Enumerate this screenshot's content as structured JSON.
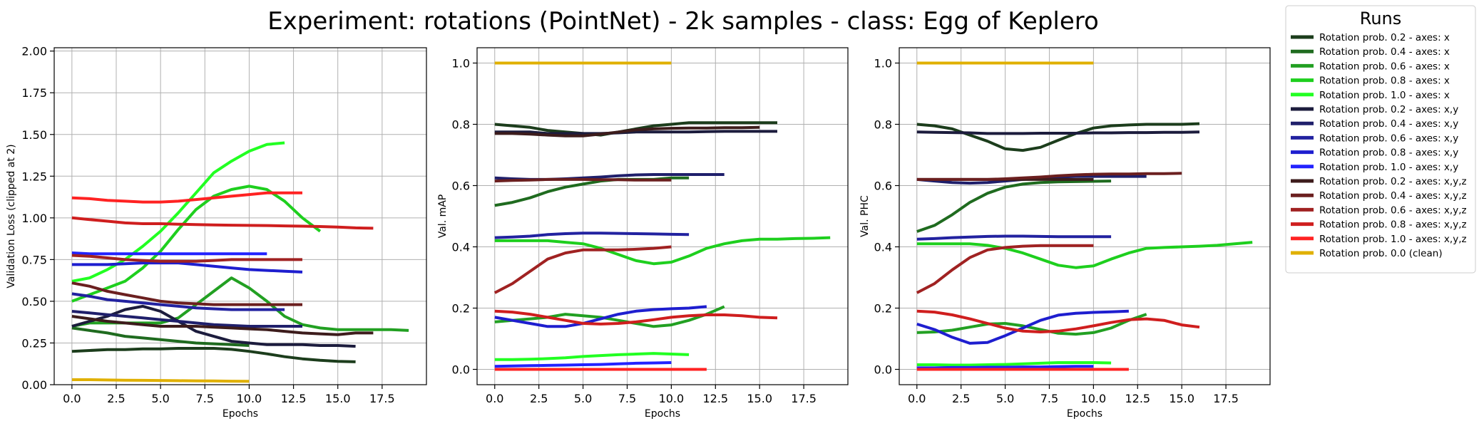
{
  "figure": {
    "title": "Experiment: rotations (PointNet) - 2k samples - class: Egg of Keplero"
  },
  "legend": {
    "title": "Runs",
    "placement": "outside-right"
  },
  "series_meta": [
    {
      "name": "Rotation prob. 0.2 - axes: x",
      "color": "#1c3d1c"
    },
    {
      "name": "Rotation prob. 0.4 - axes: x",
      "color": "#1f6b1f"
    },
    {
      "name": "Rotation prob. 0.6 - axes: x",
      "color": "#22a022"
    },
    {
      "name": "Rotation prob. 0.8 - axes: x",
      "color": "#1ecf1e"
    },
    {
      "name": "Rotation prob. 1.0 - axes: x",
      "color": "#22ff22"
    },
    {
      "name": "Rotation prob. 0.2 - axes: x,y",
      "color": "#1c1c3d"
    },
    {
      "name": "Rotation prob. 0.4 - axes: x,y",
      "color": "#1f1f6b"
    },
    {
      "name": "Rotation prob. 0.6 - axes: x,y",
      "color": "#2222a0"
    },
    {
      "name": "Rotation prob. 0.8 - axes: x,y",
      "color": "#1e1ecf"
    },
    {
      "name": "Rotation prob. 1.0 - axes: x,y",
      "color": "#2222ff"
    },
    {
      "name": "Rotation prob. 0.2 - axes: x,y,z",
      "color": "#3d1c1c"
    },
    {
      "name": "Rotation prob. 0.4 - axes: x,y,z",
      "color": "#6b1f1f"
    },
    {
      "name": "Rotation prob. 0.6 - axes: x,y,z",
      "color": "#a02222"
    },
    {
      "name": "Rotation prob. 0.8 - axes: x,y,z",
      "color": "#cf1e1e"
    },
    {
      "name": "Rotation prob. 1.0 - axes: x,y,z",
      "color": "#ff2222"
    },
    {
      "name": "Rotation prob. 0.0 (clean)",
      "color": "#e0b000"
    }
  ],
  "chart_data": [
    {
      "type": "line",
      "title": "",
      "xlabel": "Epochs",
      "ylabel": "Validation Loss (clipped at 2)",
      "xlim": [
        -1,
        20
      ],
      "ylim": [
        0,
        2.02
      ],
      "xticks": [
        "0.0",
        "2.5",
        "5.0",
        "7.5",
        "10.0",
        "12.5",
        "15.0",
        "17.5"
      ],
      "xtick_values": [
        0,
        2.5,
        5,
        7.5,
        10,
        12.5,
        15,
        17.5
      ],
      "yticks": [
        "0.00",
        "0.25",
        "0.50",
        "0.75",
        "1.00",
        "1.25",
        "1.50",
        "1.75",
        "2.00"
      ],
      "ytick_values": [
        0,
        0.25,
        0.5,
        0.75,
        1.0,
        1.25,
        1.5,
        1.75,
        2.0
      ],
      "grid": true,
      "series": [
        {
          "values": [
            0.2,
            0.205,
            0.21,
            0.21,
            0.215,
            0.215,
            0.218,
            0.218,
            0.218,
            0.212,
            0.2,
            0.185,
            0.168,
            0.155,
            0.146,
            0.14,
            0.137
          ]
        },
        {
          "values": [
            0.34,
            0.325,
            0.31,
            0.29,
            0.28,
            0.27,
            0.26,
            0.25,
            0.245,
            0.24,
            0.235
          ]
        },
        {
          "values": [
            0.35,
            0.37,
            0.37,
            0.37,
            0.37,
            0.37,
            0.4,
            0.48,
            0.56,
            0.64,
            0.58,
            0.5,
            0.41,
            0.36,
            0.34,
            0.33,
            0.33,
            0.33,
            0.33,
            0.325
          ]
        },
        {
          "values": [
            0.5,
            0.54,
            0.58,
            0.62,
            0.7,
            0.8,
            0.93,
            1.05,
            1.13,
            1.17,
            1.19,
            1.17,
            1.1,
            1.0,
            0.92
          ]
        },
        {
          "values": [
            0.62,
            0.64,
            0.69,
            0.75,
            0.83,
            0.92,
            1.03,
            1.15,
            1.27,
            1.34,
            1.4,
            1.44,
            1.45
          ]
        },
        {
          "values": [
            0.35,
            0.38,
            0.41,
            0.45,
            0.47,
            0.44,
            0.38,
            0.32,
            0.29,
            0.26,
            0.25,
            0.24,
            0.24,
            0.24,
            0.235,
            0.235,
            0.23
          ]
        },
        {
          "values": [
            0.44,
            0.43,
            0.42,
            0.41,
            0.4,
            0.39,
            0.38,
            0.37,
            0.36,
            0.355,
            0.35,
            0.35,
            0.35,
            0.35
          ]
        },
        {
          "values": [
            0.545,
            0.53,
            0.51,
            0.5,
            0.49,
            0.48,
            0.47,
            0.46,
            0.455,
            0.45,
            0.45,
            0.45,
            0.45
          ]
        },
        {
          "values": [
            0.72,
            0.72,
            0.72,
            0.725,
            0.73,
            0.73,
            0.73,
            0.72,
            0.71,
            0.7,
            0.69,
            0.685,
            0.68,
            0.675
          ]
        },
        {
          "values": [
            0.79,
            0.785,
            0.785,
            0.785,
            0.785,
            0.785,
            0.785,
            0.785,
            0.785,
            0.785,
            0.785,
            0.785
          ]
        },
        {
          "values": [
            0.41,
            0.395,
            0.38,
            0.37,
            0.36,
            0.35,
            0.35,
            0.35,
            0.345,
            0.34,
            0.335,
            0.33,
            0.32,
            0.31,
            0.305,
            0.3,
            0.31,
            0.31
          ]
        },
        {
          "values": [
            0.61,
            0.59,
            0.56,
            0.54,
            0.52,
            0.5,
            0.49,
            0.485,
            0.48,
            0.48,
            0.48,
            0.48,
            0.48,
            0.48
          ]
        },
        {
          "values": [
            0.775,
            0.77,
            0.76,
            0.75,
            0.745,
            0.74,
            0.74,
            0.74,
            0.745,
            0.75,
            0.75,
            0.75,
            0.75,
            0.75
          ]
        },
        {
          "values": [
            1.0,
            0.99,
            0.98,
            0.97,
            0.965,
            0.965,
            0.962,
            0.96,
            0.958,
            0.956,
            0.955,
            0.954,
            0.952,
            0.95,
            0.948,
            0.945,
            0.94,
            0.938
          ]
        },
        {
          "values": [
            1.12,
            1.115,
            1.105,
            1.1,
            1.095,
            1.095,
            1.1,
            1.11,
            1.12,
            1.13,
            1.14,
            1.15,
            1.15,
            1.15
          ]
        },
        {
          "values": [
            0.03,
            0.03,
            0.028,
            0.027,
            0.026,
            0.025,
            0.024,
            0.023,
            0.022,
            0.021,
            0.02
          ]
        }
      ]
    },
    {
      "type": "line",
      "title": "",
      "xlabel": "Epochs",
      "ylabel": "Val. mAP",
      "xlim": [
        -1,
        20
      ],
      "ylim": [
        -0.05,
        1.05
      ],
      "xticks": [
        "0.0",
        "2.5",
        "5.0",
        "7.5",
        "10.0",
        "12.5",
        "15.0",
        "17.5"
      ],
      "xtick_values": [
        0,
        2.5,
        5,
        7.5,
        10,
        12.5,
        15,
        17.5
      ],
      "yticks": [
        "0.0",
        "0.2",
        "0.4",
        "0.6",
        "0.8",
        "1.0"
      ],
      "ytick_values": [
        0,
        0.2,
        0.4,
        0.6,
        0.8,
        1.0
      ],
      "grid": true,
      "series": [
        {
          "values": [
            0.8,
            0.795,
            0.79,
            0.78,
            0.775,
            0.77,
            0.765,
            0.775,
            0.785,
            0.795,
            0.8,
            0.805,
            0.805,
            0.805,
            0.805,
            0.805,
            0.805
          ]
        },
        {
          "values": [
            0.535,
            0.545,
            0.56,
            0.58,
            0.595,
            0.605,
            0.615,
            0.62,
            0.62,
            0.62,
            0.625,
            0.625
          ]
        },
        {
          "values": [
            0.155,
            0.16,
            0.165,
            0.17,
            0.18,
            0.175,
            0.17,
            0.16,
            0.15,
            0.14,
            0.145,
            0.16,
            0.18,
            0.205
          ]
        },
        {
          "values": [
            0.42,
            0.42,
            0.42,
            0.42,
            0.415,
            0.41,
            0.395,
            0.375,
            0.355,
            0.345,
            0.35,
            0.37,
            0.395,
            0.41,
            0.42,
            0.425,
            0.425,
            0.427,
            0.428,
            0.43
          ]
        },
        {
          "values": [
            0.032,
            0.032,
            0.033,
            0.035,
            0.038,
            0.042,
            0.045,
            0.048,
            0.05,
            0.052,
            0.05,
            0.048
          ]
        },
        {
          "values": [
            0.775,
            0.775,
            0.775,
            0.77,
            0.77,
            0.77,
            0.77,
            0.772,
            0.775,
            0.775,
            0.775,
            0.775,
            0.776,
            0.777,
            0.777,
            0.777,
            0.777
          ]
        },
        {
          "values": [
            0.625,
            0.622,
            0.62,
            0.62,
            0.622,
            0.625,
            0.628,
            0.632,
            0.635,
            0.636,
            0.636,
            0.636,
            0.636,
            0.636
          ]
        },
        {
          "values": [
            0.43,
            0.432,
            0.435,
            0.44,
            0.443,
            0.445,
            0.445,
            0.444,
            0.443,
            0.442,
            0.441,
            0.44
          ]
        },
        {
          "values": [
            0.17,
            0.16,
            0.15,
            0.14,
            0.14,
            0.15,
            0.165,
            0.18,
            0.19,
            0.195,
            0.198,
            0.2,
            0.205
          ]
        },
        {
          "values": [
            0.01,
            0.011,
            0.012,
            0.013,
            0.014,
            0.015,
            0.016,
            0.018,
            0.02,
            0.021,
            0.022
          ]
        },
        {
          "values": [
            0.77,
            0.77,
            0.768,
            0.765,
            0.762,
            0.762,
            0.768,
            0.775,
            0.782,
            0.785,
            0.787,
            0.788,
            0.788,
            0.789,
            0.789,
            0.79
          ]
        },
        {
          "values": [
            0.615,
            0.617,
            0.618,
            0.62,
            0.62,
            0.62,
            0.619,
            0.619,
            0.618,
            0.618,
            0.618
          ]
        },
        {
          "values": [
            0.25,
            0.28,
            0.32,
            0.36,
            0.38,
            0.39,
            0.39,
            0.39,
            0.392,
            0.395,
            0.4
          ]
        },
        {
          "values": [
            0.19,
            0.187,
            0.18,
            0.17,
            0.16,
            0.15,
            0.148,
            0.15,
            0.155,
            0.162,
            0.17,
            0.175,
            0.178,
            0.178,
            0.175,
            0.17,
            0.168
          ]
        },
        {
          "values": [
            0.0,
            0.0,
            0.0,
            0.0,
            0.0,
            0.0,
            0.0,
            0.0,
            0.0,
            0.0,
            0.0,
            0.0,
            0.0
          ]
        },
        {
          "values": [
            1.0,
            1.0,
            1.0,
            1.0,
            1.0,
            1.0,
            1.0,
            1.0,
            1.0,
            1.0,
            1.0
          ]
        }
      ]
    },
    {
      "type": "line",
      "title": "",
      "xlabel": "Epochs",
      "ylabel": "Val. PHC",
      "xlim": [
        -1,
        20
      ],
      "ylim": [
        -0.05,
        1.05
      ],
      "xticks": [
        "0.0",
        "2.5",
        "5.0",
        "7.5",
        "10.0",
        "12.5",
        "15.0",
        "17.5"
      ],
      "xtick_values": [
        0,
        2.5,
        5,
        7.5,
        10,
        12.5,
        15,
        17.5
      ],
      "yticks": [
        "0.0",
        "0.2",
        "0.4",
        "0.6",
        "0.8",
        "1.0"
      ],
      "ytick_values": [
        0,
        0.2,
        0.4,
        0.6,
        0.8,
        1.0
      ],
      "grid": true,
      "series": [
        {
          "values": [
            0.8,
            0.795,
            0.785,
            0.765,
            0.745,
            0.72,
            0.715,
            0.725,
            0.748,
            0.77,
            0.788,
            0.795,
            0.798,
            0.8,
            0.8,
            0.8,
            0.802
          ]
        },
        {
          "values": [
            0.45,
            0.47,
            0.505,
            0.545,
            0.575,
            0.595,
            0.605,
            0.61,
            0.612,
            0.613,
            0.614,
            0.615
          ]
        },
        {
          "values": [
            0.12,
            0.122,
            0.128,
            0.138,
            0.148,
            0.15,
            0.142,
            0.13,
            0.118,
            0.115,
            0.12,
            0.135,
            0.16,
            0.18
          ]
        },
        {
          "values": [
            0.41,
            0.41,
            0.41,
            0.41,
            0.405,
            0.395,
            0.38,
            0.36,
            0.34,
            0.332,
            0.338,
            0.36,
            0.38,
            0.395,
            0.398,
            0.4,
            0.402,
            0.405,
            0.41,
            0.415
          ]
        },
        {
          "values": [
            0.015,
            0.015,
            0.014,
            0.014,
            0.015,
            0.016,
            0.018,
            0.02,
            0.022,
            0.022,
            0.022,
            0.021
          ]
        },
        {
          "values": [
            0.775,
            0.774,
            0.773,
            0.772,
            0.77,
            0.77,
            0.77,
            0.771,
            0.771,
            0.771,
            0.772,
            0.772,
            0.773,
            0.773,
            0.774,
            0.774,
            0.775
          ]
        },
        {
          "values": [
            0.62,
            0.615,
            0.61,
            0.608,
            0.61,
            0.615,
            0.62,
            0.625,
            0.628,
            0.63,
            0.63,
            0.63,
            0.63,
            0.63
          ]
        },
        {
          "values": [
            0.425,
            0.427,
            0.43,
            0.432,
            0.434,
            0.435,
            0.435,
            0.434,
            0.433,
            0.433,
            0.433,
            0.433
          ]
        },
        {
          "values": [
            0.148,
            0.13,
            0.105,
            0.085,
            0.088,
            0.11,
            0.135,
            0.16,
            0.177,
            0.183,
            0.186,
            0.188,
            0.19
          ]
        },
        {
          "values": [
            0.005,
            0.005,
            0.006,
            0.006,
            0.007,
            0.007,
            0.008,
            0.008,
            0.009,
            0.01,
            0.01
          ]
        },
        {
          "values": [
            0.62,
            0.62,
            0.62,
            0.62,
            0.62,
            0.62,
            0.62,
            0.62,
            0.62,
            0.62,
            0.62
          ]
        },
        {
          "values": [
            0.62,
            0.62,
            0.62,
            0.62,
            0.62,
            0.622,
            0.625,
            0.628,
            0.632,
            0.635,
            0.637,
            0.638,
            0.638,
            0.639,
            0.639,
            0.64
          ]
        },
        {
          "values": [
            0.25,
            0.28,
            0.325,
            0.365,
            0.39,
            0.398,
            0.402,
            0.404,
            0.404,
            0.404,
            0.404
          ]
        },
        {
          "values": [
            0.19,
            0.187,
            0.178,
            0.165,
            0.15,
            0.135,
            0.125,
            0.122,
            0.125,
            0.132,
            0.142,
            0.153,
            0.162,
            0.165,
            0.16,
            0.145,
            0.138
          ]
        },
        {
          "values": [
            0.0,
            0.0,
            0.0,
            0.0,
            0.0,
            0.0,
            0.0,
            0.0,
            0.0,
            0.0,
            0.0,
            0.0,
            0.0
          ]
        },
        {
          "values": [
            1.0,
            1.0,
            1.0,
            1.0,
            1.0,
            1.0,
            1.0,
            1.0,
            1.0,
            1.0,
            1.0
          ]
        }
      ]
    }
  ]
}
